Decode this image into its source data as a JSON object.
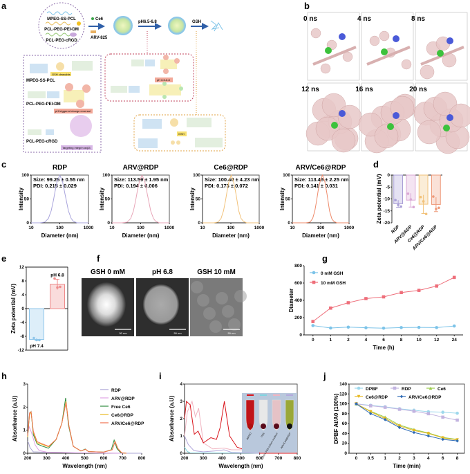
{
  "panel_labels": {
    "a": "a",
    "b": "b",
    "c": "c",
    "d": "d",
    "e": "e",
    "f": "f",
    "g": "g",
    "h": "h",
    "i": "i",
    "j": "j"
  },
  "panel_a": {
    "polymers": [
      "MPEG-SS-PCL",
      "PCL-PEG-PEI-DM",
      "PCL-PEG-cRGD"
    ],
    "drug1": "Ce6",
    "drug2": "ARV-825",
    "step1": "pH6.5-6.8",
    "step2": "GSH",
    "tag_gsh": "GSH cleavable",
    "tag_ph": "pH triggered charge reversal",
    "tag_rgd": "Targeting integrin αvβ3",
    "box_ph_tag": "pH 6.5-6.8",
    "box_gsh_tag": "GSH",
    "colors": {
      "mpeg": "#cfe3f3",
      "pcl": "#e3efdf",
      "pei": "#f7f0b8",
      "dm": "#f2b6a8",
      "rgd": "#e3c4ea"
    }
  },
  "panel_b": {
    "frames": [
      "0 ns",
      "4 ns",
      "8 ns",
      "12 ns",
      "16 ns",
      "20 ns"
    ]
  },
  "panel_f": {
    "titles": [
      "GSH 0 mM",
      "pH 6.8",
      "GSH 10 mM"
    ],
    "scale_bar": "50 nm"
  },
  "panel_i_inset": {
    "tubes": [
      "ddH2O",
      "PBS",
      "10% FBS culture medium",
      "ARV/Ce6@RDP"
    ]
  },
  "chart_data": [
    {
      "id": "c1",
      "type": "line",
      "title": "RDP",
      "annotations": [
        "Size: 99.26 ± 0.55 nm",
        "PDI: 0.215 ± 0.029"
      ],
      "xlabel": "Diameter (nm)",
      "ylabel": "Intensity",
      "xscale": "log",
      "xlim": [
        10,
        1000
      ],
      "ylim": [
        0,
        100
      ],
      "xticks": [
        10,
        100,
        1000
      ],
      "yticks": [
        0,
        50,
        100
      ],
      "frame": "box",
      "series": [
        {
          "color": "#a9a4dc",
          "x": [
            10,
            20,
            30,
            40,
            50,
            60,
            70,
            80,
            100,
            125,
            150,
            200,
            250,
            300,
            400,
            1000
          ],
          "y": [
            0,
            0,
            1.5,
            9,
            25,
            47,
            69,
            86,
            100,
            86,
            62,
            25,
            9,
            3,
            0,
            0
          ]
        }
      ]
    },
    {
      "id": "c2",
      "type": "line",
      "title": "ARV@RDP",
      "annotations": [
        "Size: 113.59 ± 1.95 nm",
        "PDI: 0.194 ± 0.006"
      ],
      "xlabel": "Diameter (nm)",
      "ylabel": "Intensity",
      "xscale": "log",
      "xlim": [
        10,
        1000
      ],
      "ylim": [
        0,
        100
      ],
      "xticks": [
        10,
        100,
        1000
      ],
      "yticks": [
        0,
        50,
        100
      ],
      "frame": "box",
      "series": [
        {
          "color": "#e8a6b8",
          "x": [
            10,
            22,
            34,
            45,
            56,
            67,
            78,
            90,
            112,
            140,
            168,
            224,
            280,
            336,
            448,
            1000
          ],
          "y": [
            0,
            0,
            1.5,
            9,
            25,
            47,
            69,
            86,
            100,
            86,
            62,
            25,
            9,
            3,
            0,
            0
          ]
        }
      ]
    },
    {
      "id": "c3",
      "type": "line",
      "title": "Ce6@RDP",
      "annotations": [
        "Size: 100.40 ± 4.23 nm",
        "PDI: 0.173 ± 0.072"
      ],
      "xlabel": "Diameter (nm)",
      "ylabel": "Intensity",
      "xscale": "log",
      "xlim": [
        10,
        1000
      ],
      "ylim": [
        0,
        100
      ],
      "xticks": [
        10,
        100,
        1000
      ],
      "yticks": [
        0,
        50,
        100
      ],
      "frame": "box",
      "series": [
        {
          "color": "#f2c27a",
          "x": [
            10,
            25,
            35,
            45,
            55,
            65,
            75,
            85,
            103,
            125,
            150,
            190,
            230,
            280,
            360,
            1000
          ],
          "y": [
            0,
            0,
            1.5,
            9,
            25,
            47,
            69,
            86,
            100,
            86,
            62,
            25,
            9,
            3,
            0,
            0
          ]
        }
      ]
    },
    {
      "id": "c4",
      "type": "line",
      "title": "ARV/Ce6@RDP",
      "annotations": [
        "Size: 113.45 ± 2.25 nm",
        "PDI: 0.141 ± 0.031"
      ],
      "xlabel": "Diameter (nm)",
      "ylabel": "Intensity",
      "xscale": "log",
      "xlim": [
        10,
        1000
      ],
      "ylim": [
        0,
        100
      ],
      "xticks": [
        10,
        100,
        1000
      ],
      "yticks": [
        0,
        50,
        100
      ],
      "frame": "box",
      "series": [
        {
          "color": "#ee8a6a",
          "x": [
            10,
            30,
            42,
            52,
            62,
            72,
            82,
            95,
            115,
            140,
            165,
            205,
            245,
            290,
            370,
            1000
          ],
          "y": [
            0,
            0,
            1.5,
            9,
            25,
            47,
            69,
            86,
            100,
            86,
            62,
            25,
            9,
            3,
            0,
            0
          ]
        }
      ]
    },
    {
      "id": "d",
      "type": "bar",
      "ylabel": "Zeta potential (mV)",
      "categories": [
        "RDP",
        "ARV@RDP",
        "Ce6@RDP",
        "ARV/Ce6@RDP"
      ],
      "values": [
        -12.0,
        -10.5,
        -12.2,
        -12.3
      ],
      "errors": [
        1.5,
        2.9,
        3.9,
        3.0
      ],
      "points": [
        [
          -10.5,
          -12.5,
          -13.2
        ],
        [
          -7.8,
          -10.2,
          -13.4
        ],
        [
          -9.2,
          -11.0,
          -16.3
        ],
        [
          -9.0,
          -14.2,
          -13.7
        ]
      ],
      "colors": [
        "#a99fd6",
        "#d9a7d4",
        "#f2c27a",
        "#ee9a7a"
      ],
      "ylim": [
        -20,
        0
      ],
      "yticks": [
        0,
        -5,
        -10,
        -15,
        -20
      ]
    },
    {
      "id": "e",
      "type": "bar",
      "ylabel": "Zeta potential (mV)",
      "categories": [
        "pH 7.4",
        "pH 6.8"
      ],
      "values": [
        -8.9,
        7.0
      ],
      "errors": [
        0.3,
        1.5
      ],
      "points": [
        [
          -8.5,
          -9.1,
          -9.1
        ],
        [
          8.7,
          6.1,
          6.3
        ]
      ],
      "colors": [
        "#8fc6ea",
        "#ee8a8a"
      ],
      "ylim": [
        -12,
        12
      ],
      "yticks": [
        12,
        8,
        4,
        0,
        -4,
        -8,
        -12
      ]
    },
    {
      "id": "g",
      "type": "line",
      "xlabel": "Time (h)",
      "ylabel": "Diameter",
      "categories": [
        "0",
        "1",
        "2",
        "4",
        "6",
        "8",
        "10",
        "12",
        "24"
      ],
      "ylim": [
        0,
        800
      ],
      "yticks": [
        0,
        200,
        400,
        600,
        800
      ],
      "frame": "axes",
      "legend": "top-left",
      "series": [
        {
          "name": "0 mM GSH",
          "color": "#7cc3e8",
          "marker": "circle",
          "y": [
            108,
            80,
            90,
            83,
            78,
            85,
            87,
            85,
            103
          ]
        },
        {
          "name": "10 mM GSH",
          "color": "#ee6e7a",
          "marker": "square",
          "y": [
            155,
            310,
            372,
            420,
            440,
            490,
            515,
            565,
            665
          ]
        }
      ]
    },
    {
      "id": "h",
      "type": "line",
      "xlabel": "Wavelength (nm)",
      "ylabel": "Absorbance (a.U)",
      "xlim": [
        200,
        800
      ],
      "ylim": [
        0,
        3
      ],
      "xticks": [
        200,
        300,
        400,
        500,
        600,
        700,
        800
      ],
      "yticks": [
        0,
        1,
        2,
        3
      ],
      "frame": "axes",
      "legend": "top-right",
      "series": [
        {
          "name": "RDP",
          "color": "#a9a4d4",
          "x": [
            200,
            205,
            212,
            230,
            300,
            450,
            700,
            800
          ],
          "y": [
            0.5,
            0.45,
            0.25,
            0.06,
            0.04,
            0.02,
            0.0,
            0
          ]
        },
        {
          "name": "ARV@RDP",
          "color": "#e0a2e6",
          "x": [
            200,
            208,
            220,
            240,
            260,
            300,
            450,
            700
          ],
          "y": [
            0.8,
            1.15,
            0.9,
            0.35,
            0.12,
            0.05,
            0.02,
            0
          ]
        },
        {
          "name": "Free Ce6",
          "color": "#2e8b3e",
          "x": [
            200,
            210,
            218,
            230,
            250,
            280,
            310,
            350,
            380,
            400,
            415,
            440,
            480,
            503,
            520,
            600,
            640,
            655,
            670,
            690,
            720
          ],
          "y": [
            0.7,
            1.7,
            1.8,
            0.8,
            0.4,
            0.3,
            0.22,
            0.6,
            1.3,
            2.4,
            1.2,
            0.3,
            0.1,
            0.18,
            0.07,
            0.05,
            0.15,
            0.57,
            0.2,
            0.02,
            0
          ]
        },
        {
          "name": "Ce6@RDP",
          "color": "#e8b922",
          "x": [
            200,
            210,
            218,
            230,
            250,
            280,
            310,
            350,
            380,
            402,
            417,
            440,
            480,
            505,
            520,
            600,
            645,
            660,
            675,
            695,
            720
          ],
          "y": [
            0.7,
            1.7,
            1.78,
            0.9,
            0.45,
            0.37,
            0.28,
            0.6,
            1.3,
            2.25,
            1.2,
            0.3,
            0.1,
            0.17,
            0.07,
            0.05,
            0.15,
            0.52,
            0.2,
            0.02,
            0
          ]
        },
        {
          "name": "ARV/Ce6@RDP",
          "color": "#f07050",
          "x": [
            200,
            210,
            218,
            230,
            250,
            280,
            310,
            350,
            380,
            402,
            417,
            440,
            480,
            505,
            520,
            600,
            645,
            660,
            675,
            695,
            720
          ],
          "y": [
            0.75,
            1.75,
            1.8,
            0.95,
            0.5,
            0.4,
            0.3,
            0.6,
            1.3,
            2.2,
            1.2,
            0.3,
            0.1,
            0.17,
            0.07,
            0.05,
            0.15,
            0.5,
            0.2,
            0.02,
            0
          ]
        }
      ]
    },
    {
      "id": "i",
      "type": "line",
      "xlabel": "Wavelength (nm)",
      "ylabel": "Absorbance (a.U)",
      "xlim": [
        200,
        800
      ],
      "ylim": [
        0,
        4
      ],
      "xticks": [
        200,
        300,
        400,
        500,
        600,
        700,
        800
      ],
      "yticks": [
        0,
        1,
        2,
        3,
        4
      ],
      "frame": "box",
      "series": [
        {
          "color": "#7fd4e0",
          "x": [
            200,
            215,
            230,
            800
          ],
          "y": [
            0.35,
            0.1,
            0.02,
            0
          ]
        },
        {
          "color": "#b3a8dc",
          "x": [
            200,
            220,
            250,
            300,
            380,
            410,
            450,
            600,
            800
          ],
          "y": [
            1.0,
            0.5,
            0.15,
            0.08,
            0.15,
            0.2,
            0.05,
            0,
            0
          ]
        },
        {
          "color": "#f0b3c0",
          "x": [
            200,
            215,
            240,
            258,
            275,
            300,
            350,
            410,
            450,
            550,
            580,
            600,
            800
          ],
          "y": [
            1.0,
            2.4,
            3.0,
            2.1,
            2.6,
            0.6,
            0.25,
            0.3,
            0.2,
            0.2,
            0.3,
            0,
            0
          ]
        },
        {
          "color": "#d9141b",
          "x": [
            200,
            210,
            230,
            252,
            272,
            300,
            340,
            370,
            390,
            412,
            440,
            480,
            520,
            540,
            555,
            575,
            600,
            800
          ],
          "y": [
            2.0,
            3.0,
            2.8,
            1.1,
            1.28,
            0.6,
            0.9,
            0.8,
            1.5,
            3.0,
            1.0,
            0.35,
            0.2,
            0.5,
            0.3,
            0.55,
            0,
            0
          ]
        }
      ]
    },
    {
      "id": "j",
      "type": "line",
      "xlabel": "Time (min)",
      "ylabel": "DPBF At/A0 (100%)",
      "categories": [
        "0",
        "0.5",
        "1",
        "2",
        "3",
        "4",
        "6",
        "8"
      ],
      "ylim": [
        0,
        140
      ],
      "yticks": [
        0,
        20,
        40,
        60,
        80,
        100,
        120,
        140
      ],
      "frame": "box",
      "legend": "top",
      "series": [
        {
          "name": "DPBF",
          "color": "#9ed8ec",
          "marker": "circle",
          "y": [
            100,
            97,
            94,
            90,
            87,
            84,
            83,
            81
          ]
        },
        {
          "name": "RDP",
          "color": "#c2b4e0",
          "marker": "square",
          "y": [
            100,
            96,
            93,
            89,
            85,
            80,
            73,
            67
          ]
        },
        {
          "name": "Ce6",
          "color": "#9acb4a",
          "marker": "triangle",
          "y": [
            100,
            85,
            73,
            57,
            48,
            41,
            32,
            28
          ]
        },
        {
          "name": "Ce6@RDP",
          "color": "#e8b922",
          "marker": "triangle-down",
          "y": [
            100,
            84,
            70,
            55,
            46,
            40,
            31,
            27
          ]
        },
        {
          "name": "ARV/Ce6@RDP",
          "color": "#2f6bb5",
          "marker": "diamond",
          "y": [
            100,
            80,
            68,
            52,
            42,
            35,
            28,
            25
          ]
        }
      ]
    }
  ]
}
